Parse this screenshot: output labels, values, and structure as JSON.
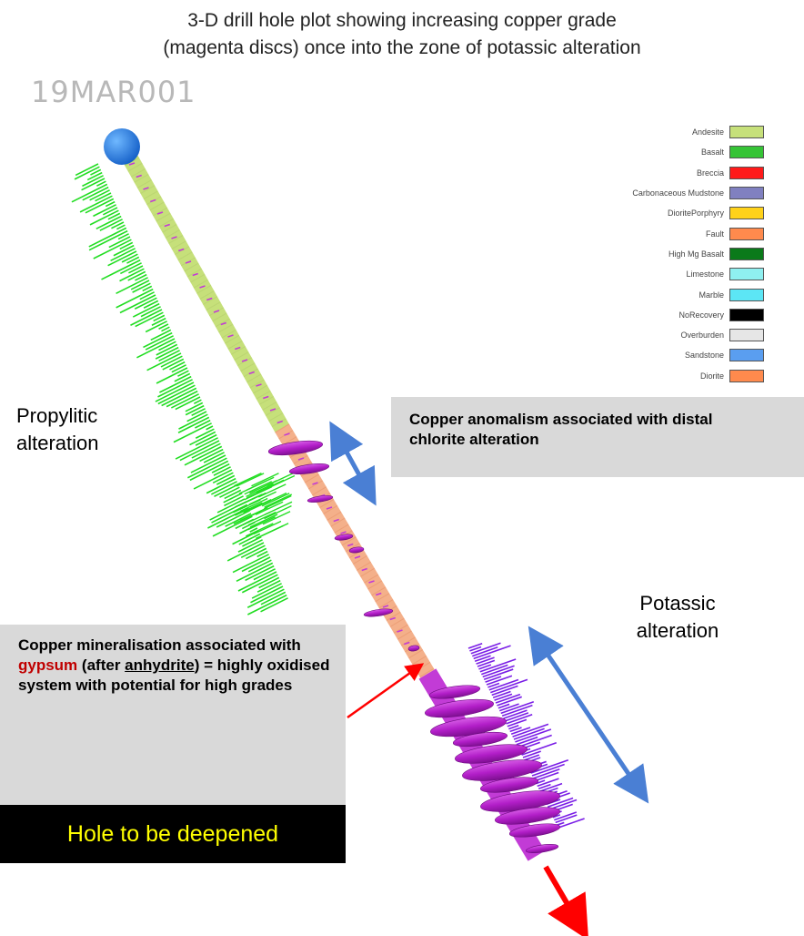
{
  "title": {
    "line1": "3-D drill hole plot showing increasing copper grade",
    "line2": "(magenta discs) once into the zone of potassic alteration"
  },
  "hole_id": "19MAR001",
  "legend": [
    {
      "label": "Andesite",
      "color": "#c6e07a"
    },
    {
      "label": "Basalt",
      "color": "#36c436"
    },
    {
      "label": "Breccia",
      "color": "#ff1a1a"
    },
    {
      "label": "Carbonaceous Mudstone",
      "color": "#8080c0"
    },
    {
      "label": "DioritePorphyry",
      "color": "#ffd21a"
    },
    {
      "label": "Fault",
      "color": "#ff8a4d"
    },
    {
      "label": "High Mg Basalt",
      "color": "#0a7a1a"
    },
    {
      "label": "Limestone",
      "color": "#8ff0f0"
    },
    {
      "label": "Marble",
      "color": "#5ce6f5"
    },
    {
      "label": "NoRecovery",
      "color": "#000000"
    },
    {
      "label": "Overburden",
      "color": "#e6e6e6"
    },
    {
      "label": "Sandstone",
      "color": "#5a9ef0"
    },
    {
      "label": "Diorite",
      "color": "#ff8a4d"
    }
  ],
  "labels": {
    "propylitic_line1": "Propylitic",
    "propylitic_line2": "alteration",
    "potassic_line1": "Potassic",
    "potassic_line2": "alteration"
  },
  "callouts": {
    "chlorite_line1": "Copper anomalism associated with distal",
    "chlorite_line2": "chlorite alteration",
    "gypsum_prefix": "Copper mineralisation associated with",
    "gypsum_word": "gypsum",
    "gypsum_after": "(after",
    "anhydrite_word": "anhydrite",
    "gypsum_suffix": ") = highly oxidised system with potential for high grades",
    "deepen": "Hole to be deepened"
  },
  "colors": {
    "andesite": "#c6e07a",
    "diorite": "#ff8a4d",
    "grade_disc": "#b21ec8",
    "propylitic_bars": "#22dd22",
    "potassic_bars": "#7a1ee6",
    "extent_arrow": "#4a7fd4",
    "pointer_arrow": "#ff0000",
    "collar": "#1e7be0"
  }
}
